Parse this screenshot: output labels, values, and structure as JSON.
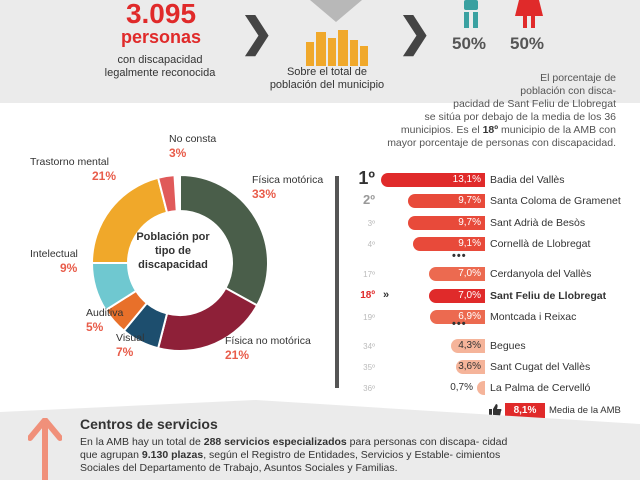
{
  "header": {
    "big_number": "3.095",
    "big_unit": "personas",
    "big_desc_line1": "con discapacidad",
    "big_desc_line2": "legalmente reconocida",
    "muni_desc_line1": "Sobre el total de",
    "muni_desc_line2": "población del municipio",
    "male_pct": "50%",
    "female_pct": "50%"
  },
  "info": {
    "line1": "El porcentaje de",
    "line2": "población con disca-",
    "line3": "pacidad de Sant Feliu de Llobregat",
    "line4": "se sitúa por debajo de la media de los 36",
    "line5a": "municipios. Es el ",
    "line5b": "18º",
    "line5c": " municipio de la AMB con",
    "line6": "mayor porcentaje de personas con discapacidad."
  },
  "donut": {
    "center_line1": "Población por",
    "center_line2": "tipo de",
    "center_line3": "discapacidad",
    "segments": [
      {
        "label": "Física motórica",
        "value": "33%",
        "pct": 33,
        "color": "#4a5e4a"
      },
      {
        "label": "Física no motórica",
        "value": "21%",
        "pct": 21,
        "color": "#8e2038"
      },
      {
        "label": "Visual",
        "value": "7%",
        "pct": 7,
        "color": "#1d4e6e"
      },
      {
        "label": "Auditiva",
        "value": "5%",
        "pct": 5,
        "color": "#e8702a"
      },
      {
        "label": "Intelectual",
        "value": "9%",
        "pct": 9,
        "color": "#6fc8d0"
      },
      {
        "label": "Trastorno mental",
        "value": "21%",
        "pct": 21,
        "color": "#f0a82a"
      },
      {
        "label": "No consta",
        "value": "3%",
        "pct": 3,
        "color": "#e05a5a"
      }
    ]
  },
  "ranking": [
    {
      "rank": "1º",
      "value": "13,1%",
      "pct": 13.1,
      "name": "Badia del Vallès"
    },
    {
      "rank": "2º",
      "value": "9,7%",
      "pct": 9.7,
      "name": "Santa Coloma de Gramenet"
    },
    {
      "rank": "3º",
      "value": "9,7%",
      "pct": 9.7,
      "name": "Sant Adrià de Besòs"
    },
    {
      "rank": "4º",
      "value": "9,1%",
      "pct": 9.1,
      "name": "Cornellà de Llobregat"
    },
    {
      "rank": "17º",
      "value": "7,0%",
      "pct": 7.0,
      "name": "Cerdanyola del Vallès"
    },
    {
      "rank": "18º",
      "value": "7,0%",
      "pct": 7.0,
      "name": "Sant Feliu de Llobregat"
    },
    {
      "rank": "19º",
      "value": "6,9%",
      "pct": 6.9,
      "name": "Montcada i Reixac"
    },
    {
      "rank": "34º",
      "value": "4,3%",
      "pct": 4.3,
      "name": "Begues"
    },
    {
      "rank": "35º",
      "value": "3,6%",
      "pct": 3.6,
      "name": "Sant Cugat del Vallès"
    },
    {
      "rank": "36º",
      "value": "0,7%",
      "pct": 0.7,
      "name": "La Palma de Cervelló"
    }
  ],
  "amb": {
    "value": "8,1%",
    "label": "Media de la AMB"
  },
  "services": {
    "title": "Centros de servicios",
    "t1": "En la AMB hay un total de ",
    "t2": "288 servicios especializados",
    "t3": " para personas con discapa-",
    "t4": "cidad que agrupan ",
    "t5": "9.130 plazas",
    "t6": ", según el Registro de Entidades, Servicios y Estable-",
    "t7": "cimientos Sociales del Departamento de Trabajo, Asuntos Sociales y Familias."
  }
}
